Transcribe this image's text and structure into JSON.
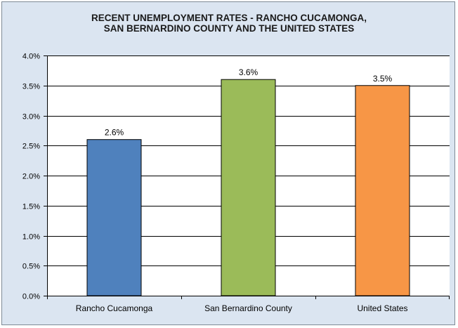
{
  "chart_data": {
    "type": "bar",
    "title": [
      "RECENT UNEMPLOYMENT RATES - RANCHO CUCAMONGA,",
      "SAN BERNARDINO COUNTY AND THE UNITED STATES"
    ],
    "categories": [
      "Rancho Cucamonga",
      "San Bernardino County",
      "United States"
    ],
    "values": [
      2.6,
      3.6,
      3.5
    ],
    "data_labels": [
      "2.6%",
      "3.6%",
      "3.5%"
    ],
    "bar_colors": [
      "#4f81bd",
      "#9bbb59",
      "#f79646"
    ],
    "ylim": [
      0,
      4.0
    ],
    "yticks": [
      0,
      0.5,
      1.0,
      1.5,
      2.0,
      2.5,
      3.0,
      3.5,
      4.0
    ],
    "ytick_labels": [
      "0.0%",
      "0.5%",
      "1.0%",
      "1.5%",
      "2.0%",
      "2.5%",
      "3.0%",
      "3.5%",
      "4.0%"
    ],
    "xlabel": "",
    "ylabel": "",
    "grid": true,
    "legend": "none",
    "background_color": "#dbe5f1"
  }
}
